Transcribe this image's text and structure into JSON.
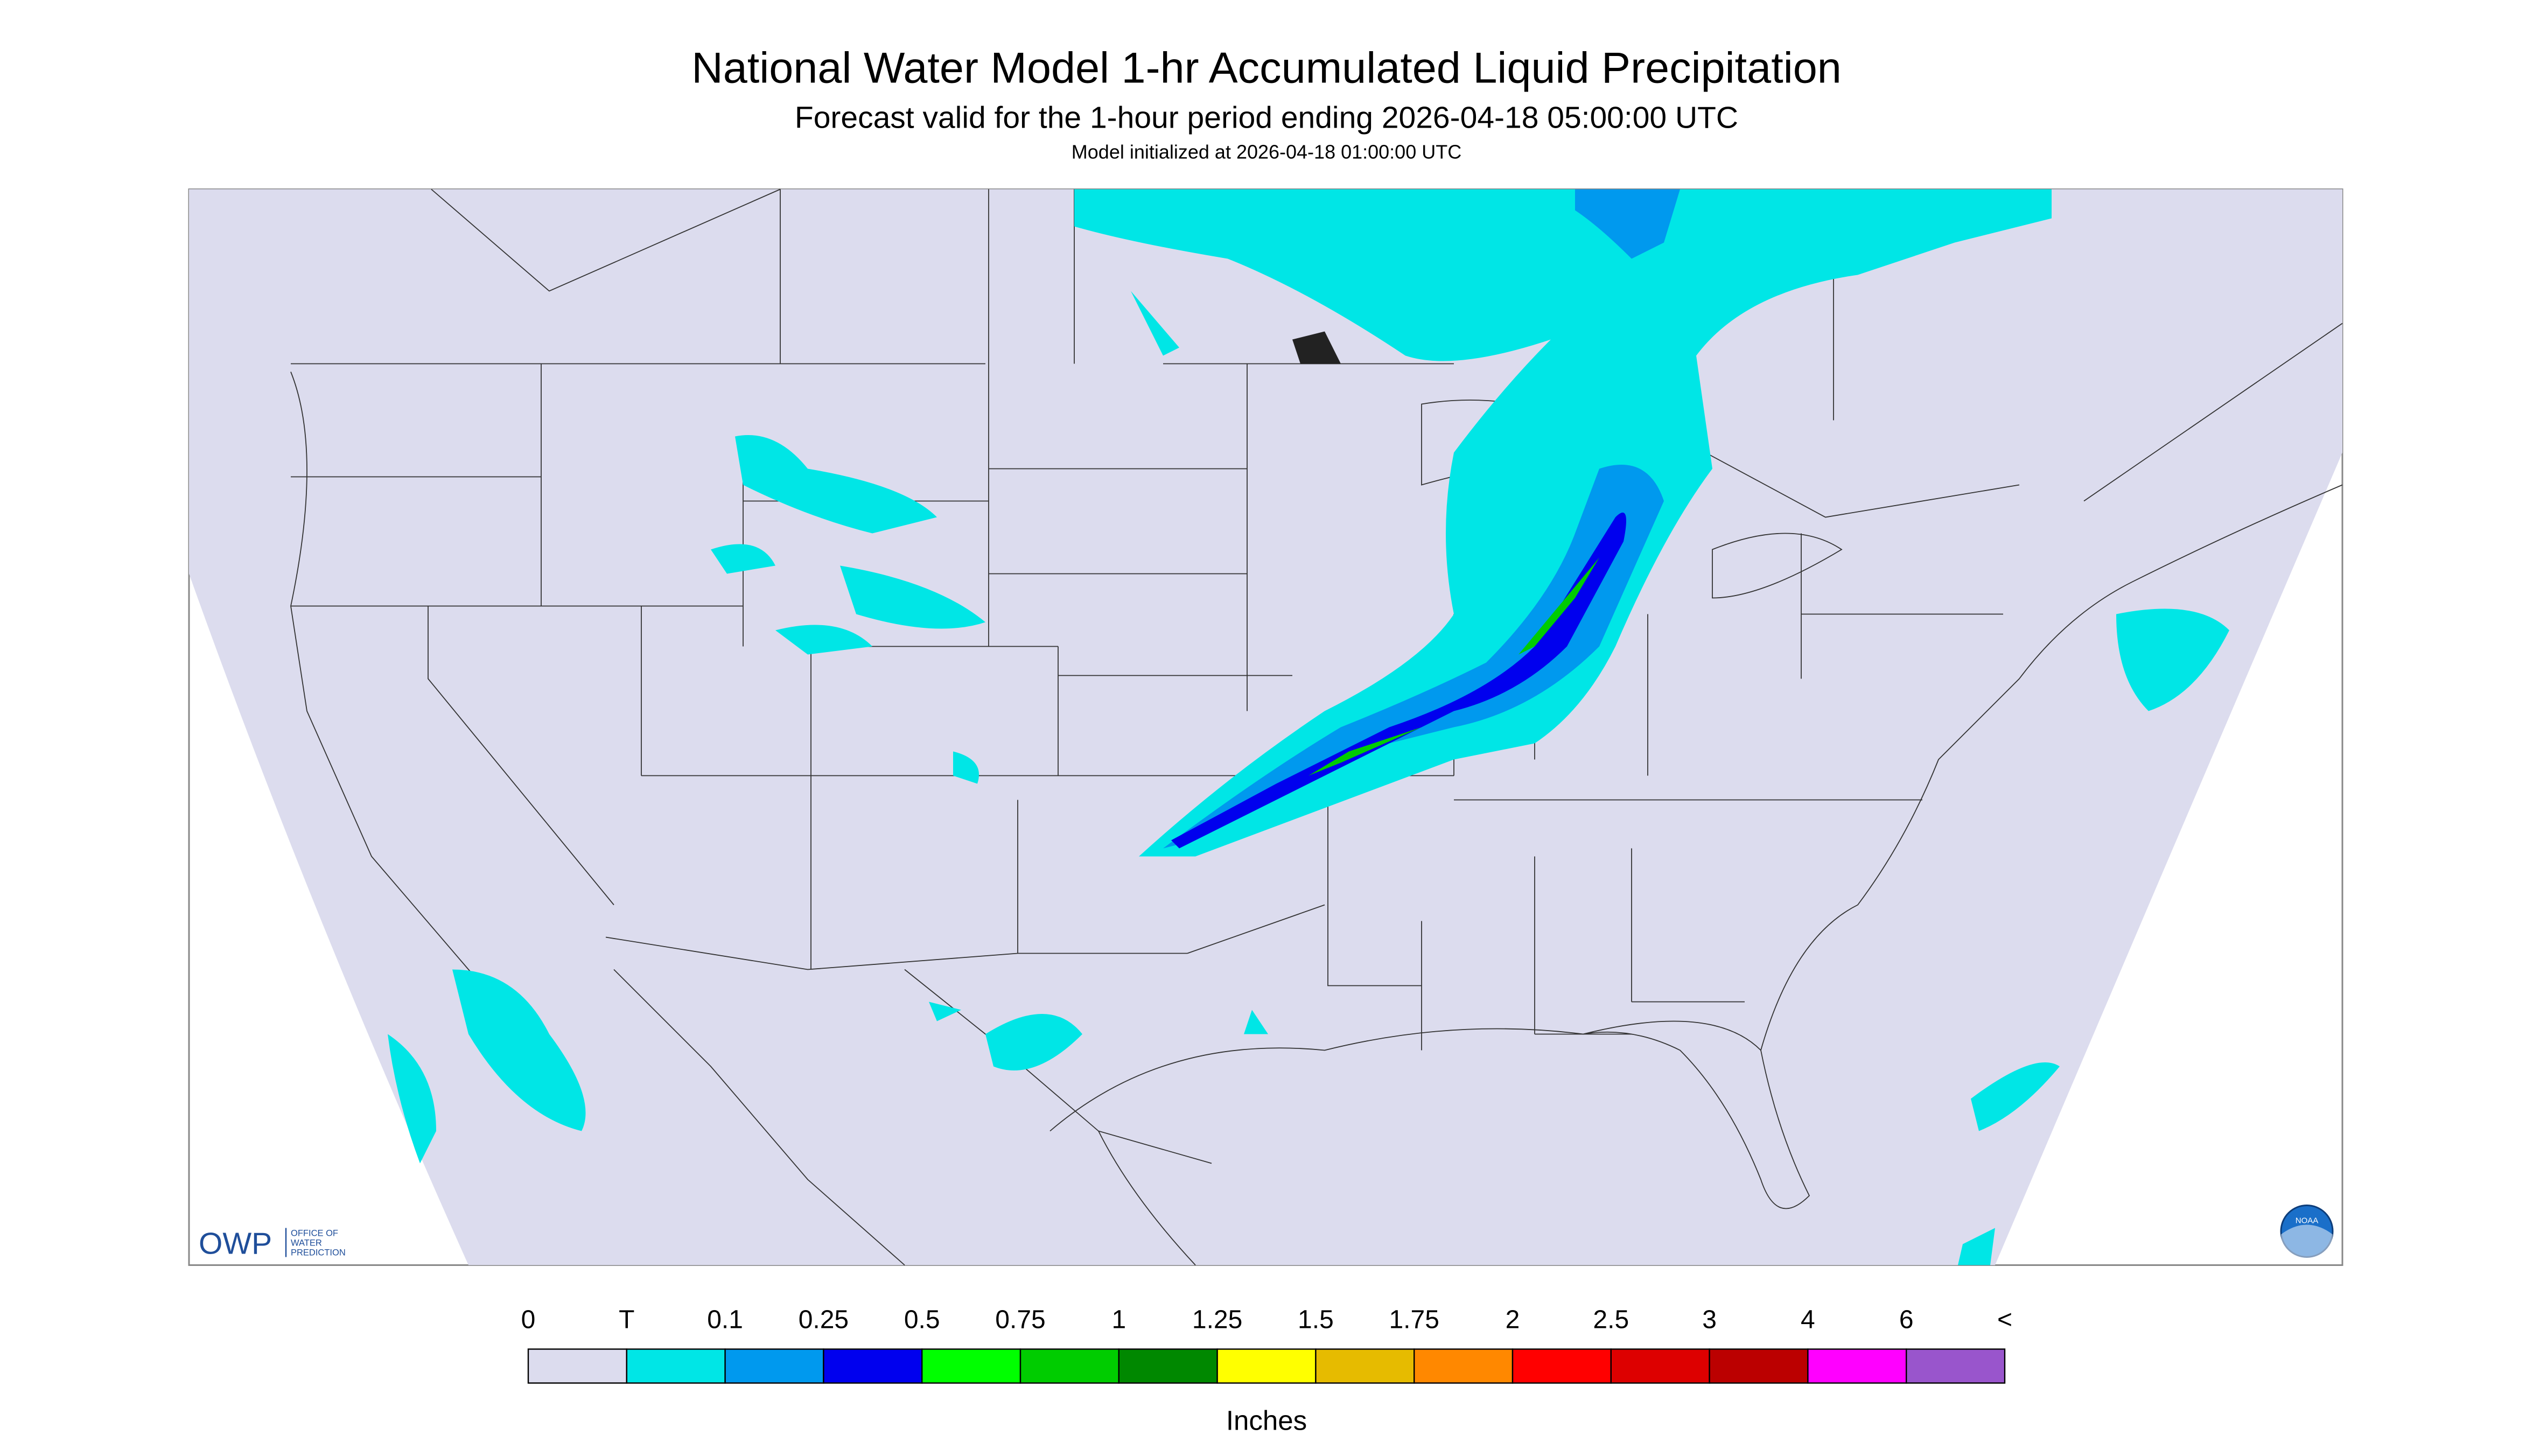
{
  "header": {
    "title": "National Water Model 1-hr Accumulated Liquid Precipitation",
    "subtitle": "Forecast valid for the 1-hour period ending 2026-04-18 05:00:00 UTC",
    "note": "Model initialized at 2026-04-18 01:00:00 UTC"
  },
  "logos": {
    "owp": "OWP",
    "owp_text": [
      "OFFICE OF",
      "WATER",
      "PREDICTION"
    ],
    "noaa": "NOAA"
  },
  "legend": {
    "labels": [
      "0",
      "T",
      "0.1",
      "0.25",
      "0.5",
      "0.75",
      "1",
      "1.25",
      "1.5",
      "1.75",
      "2",
      "2.5",
      "3",
      "4",
      "6",
      "<"
    ],
    "colors": [
      "#dcdcee",
      "#00e6e6",
      "#0099ee",
      "#0000ee",
      "#00ff00",
      "#00cc00",
      "#008800",
      "#ffff00",
      "#e6bb00",
      "#ff8800",
      "#ff0000",
      "#dd0000",
      "#bb0000",
      "#ff00ff",
      "#9955cc"
    ],
    "units": "Inches"
  }
}
